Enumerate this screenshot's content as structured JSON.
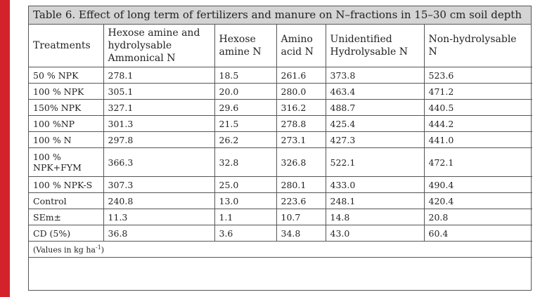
{
  "title": "Table 6. Effect of long term of fertilizers and manure on N–fractions in 15–30 cm soil depth",
  "headers": [
    "Treatments",
    "Hexose amine and hydrolysable Ammonical N",
    "Hexose amine N",
    "Amino acid N",
    "Unidentified Hydrolysable N",
    "Non-hydrolysable N"
  ],
  "rows": [
    [
      "50 % NPK",
      "278.1",
      "18.5",
      "261.6",
      "373.8",
      "523.6"
    ],
    [
      "100 % NPK",
      "305.1",
      "20.0",
      "280.0",
      "463.4",
      "471.2"
    ],
    [
      "150% NPK",
      "327.1",
      "29.6",
      "316.2",
      "488.7",
      "440.5"
    ],
    [
      "100 %NP",
      "301.3",
      "21.5",
      "278.8",
      "425.4",
      "444.2"
    ],
    [
      "100 % N",
      "297.8",
      "26.2",
      "273.1",
      "427.3",
      "441.0"
    ],
    [
      "100 % NPK+FYM",
      "366.3",
      "32.8",
      "326.8",
      "522.1",
      "472.1"
    ],
    [
      "100 % NPK-S",
      "307.3",
      "25.0",
      "280.1",
      "433.0",
      "490.4"
    ],
    [
      "Control",
      "240.8",
      "13.0",
      "223.6",
      "248.1",
      "420.4"
    ],
    [
      "SEm±",
      "11.3",
      "1.1",
      "10.7",
      "14.8",
      "20.8"
    ],
    [
      "CD (5%)",
      "36.8",
      "3.6",
      "34.8",
      "43.0",
      "60.4"
    ]
  ],
  "note": {
    "prefix": "(Values in kg ha",
    "sup": "-1",
    "suffix": ")"
  },
  "colors": {
    "accent": "#d3222a",
    "title_bg": "#d4d4d4",
    "border": "#555555"
  }
}
